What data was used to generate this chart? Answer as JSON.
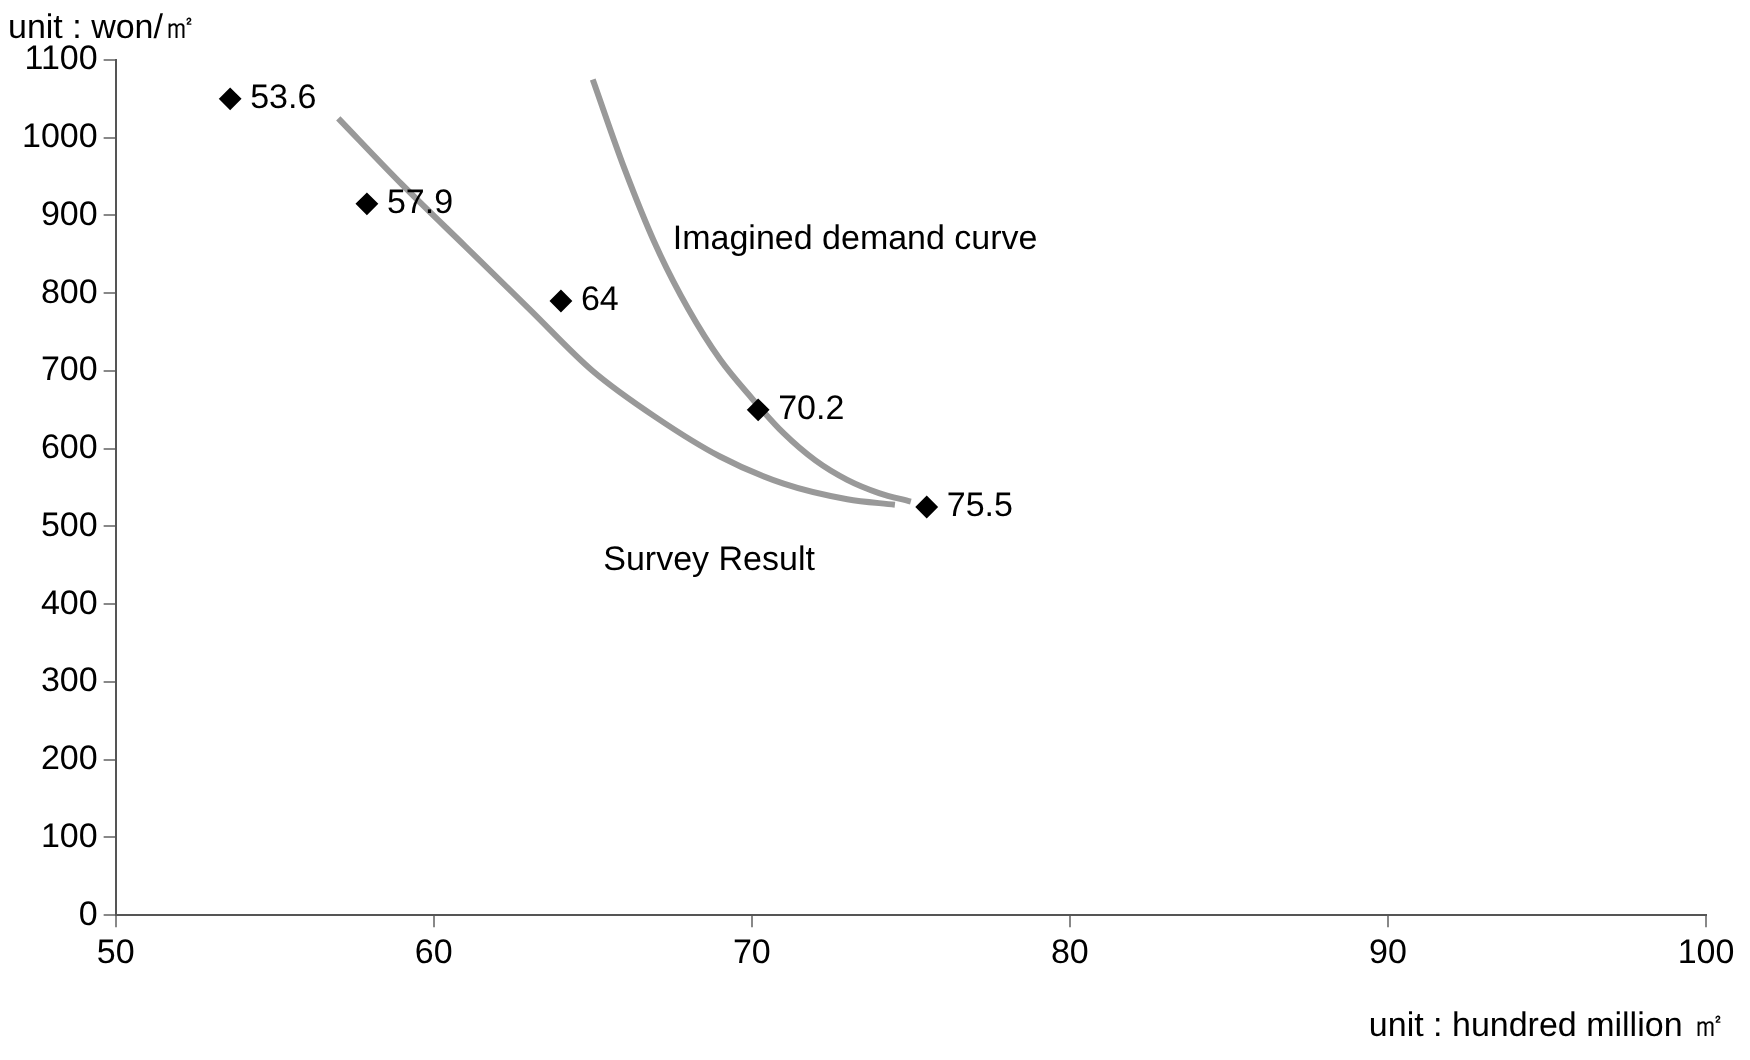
{
  "chart_data": {
    "type": "scatter",
    "xlabel": "unit : hundred million ㎡",
    "ylabel": "unit : won/㎡",
    "xlim": [
      50,
      100
    ],
    "xticks": [
      50,
      60,
      70,
      80,
      90,
      100
    ],
    "ylim": [
      0,
      1100
    ],
    "yticks": [
      0,
      100,
      200,
      300,
      400,
      500,
      600,
      700,
      800,
      900,
      1000,
      1100
    ],
    "grid": false,
    "legend": false,
    "series": [
      {
        "type": "scatter",
        "name": "53.6",
        "marker": "diamond",
        "color": "#000000",
        "x": [
          53.6
        ],
        "values": [
          1050
        ]
      },
      {
        "type": "scatter",
        "name": "57.9",
        "marker": "diamond",
        "color": "#000000",
        "x": [
          57.9
        ],
        "values": [
          915
        ]
      },
      {
        "type": "scatter",
        "name": "64",
        "marker": "diamond",
        "color": "#000000",
        "x": [
          64
        ],
        "values": [
          790
        ]
      },
      {
        "type": "scatter",
        "name": "70.2",
        "marker": "diamond",
        "color": "#000000",
        "x": [
          70.2
        ],
        "values": [
          650
        ]
      },
      {
        "type": "scatter",
        "name": "75.5",
        "marker": "diamond",
        "color": "#000000",
        "x": [
          75.5
        ],
        "values": [
          525
        ]
      },
      {
        "type": "line",
        "name": "Survey Result",
        "marker": "none",
        "line_style": "solid",
        "color": "#999999",
        "x": [
          57,
          59,
          61,
          63,
          65,
          67,
          69,
          71,
          73,
          74.5
        ],
        "values": [
          1025,
          940,
          860,
          780,
          700,
          640,
          590,
          555,
          535,
          528
        ]
      },
      {
        "type": "line",
        "name": "Imagined demand curve",
        "marker": "none",
        "line_style": "solid",
        "color": "#999999",
        "x": [
          65,
          66,
          67,
          68,
          69,
          70,
          71,
          72,
          73,
          74,
          75
        ],
        "values": [
          1075,
          960,
          860,
          780,
          715,
          665,
          620,
          585,
          560,
          543,
          532
        ]
      }
    ]
  }
}
